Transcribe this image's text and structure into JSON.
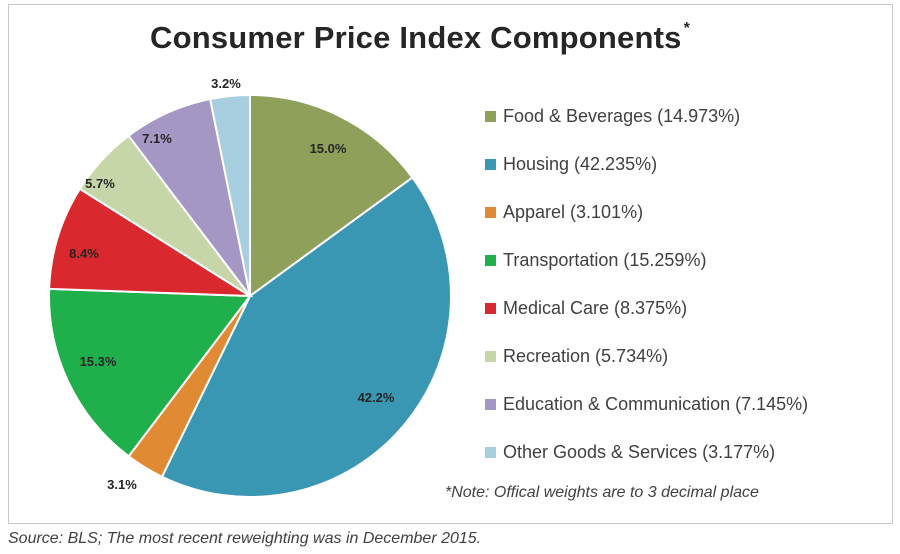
{
  "chart_data": {
    "type": "pie",
    "title": "Consumer Price Index Components",
    "title_mark": "*",
    "slices": [
      {
        "name": "Food & Beverages",
        "legend": "Food & Beverages (14.973%)",
        "value": 14.973,
        "label": "15.0%",
        "color": "#8ea05a"
      },
      {
        "name": "Housing",
        "legend": "Housing (42.235%)",
        "value": 42.235,
        "label": "42.2%",
        "color": "#3a97b4"
      },
      {
        "name": "Apparel",
        "legend": "Apparel (3.101%)",
        "value": 3.101,
        "label": "3.1%",
        "color": "#e08a34"
      },
      {
        "name": "Transportation",
        "legend": "Transportation (15.259%)",
        "value": 15.259,
        "label": "15.3%",
        "color": "#1faf4b"
      },
      {
        "name": "Medical Care",
        "legend": "Medical Care (8.375%)",
        "value": 8.375,
        "label": "8.4%",
        "color": "#d9292e"
      },
      {
        "name": "Recreation",
        "legend": "Recreation (5.734%)",
        "value": 5.734,
        "label": "5.7%",
        "color": "#c6d6a8"
      },
      {
        "name": "Education & Communication",
        "legend": "Education & Communication (7.145%)",
        "value": 7.145,
        "label": "7.1%",
        "color": "#a497c3"
      },
      {
        "name": "Other Goods & Services",
        "legend": "Other Goods & Services (3.177%)",
        "value": 3.177,
        "label": "3.2%",
        "color": "#a8cfe0"
      }
    ],
    "legend_position": "right",
    "note": "*Note: Offical weights are to 3 decimal place"
  },
  "source": "Source: BLS; The most recent reweighting was in December 2015."
}
